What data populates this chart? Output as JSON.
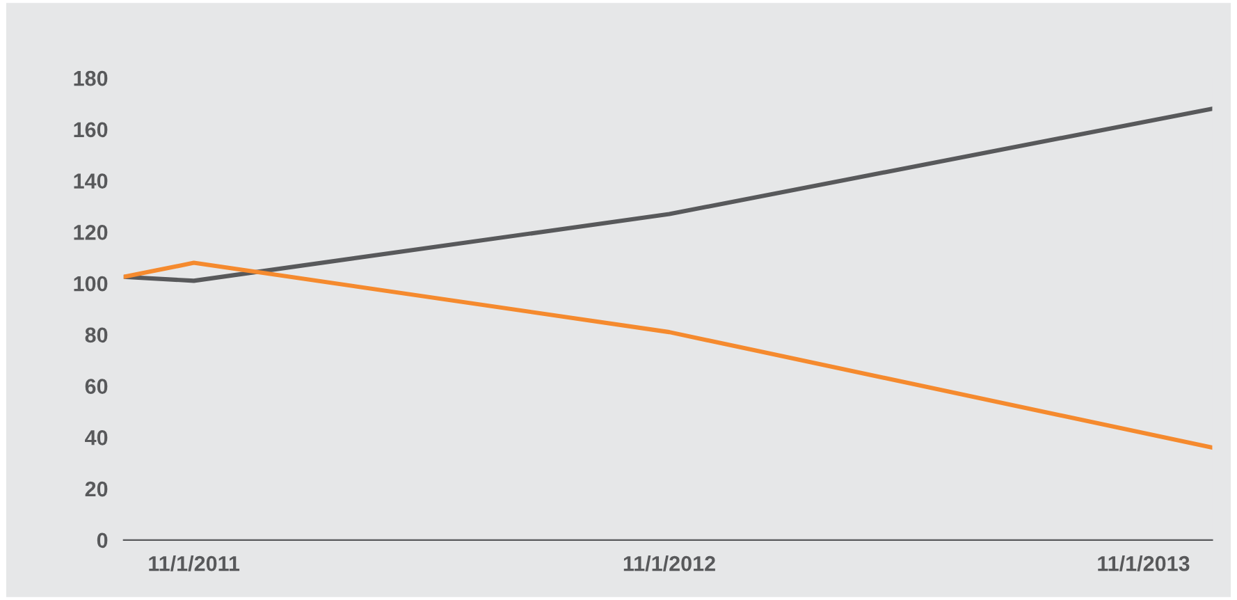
{
  "chart_data": {
    "type": "line",
    "x": [
      "2011-09-08",
      "2011-11-01",
      "2012-11-01",
      "2013-12-24"
    ],
    "series": [
      {
        "color": "#58595b",
        "values": [
          102.5,
          101,
          127,
          168
        ]
      },
      {
        "color": "#f58a2e",
        "values": [
          102.5,
          108,
          81,
          36
        ]
      }
    ],
    "xlim": [
      "2011-09-08",
      "2013-12-24"
    ],
    "xticks": [
      {
        "value": "2011-11-01",
        "label": "11/1/2011"
      },
      {
        "value": "2012-11-01",
        "label": "11/1/2012"
      },
      {
        "value": "2013-11-01",
        "label": "11/1/2013"
      }
    ],
    "ylim": [
      0,
      180
    ],
    "yticks": [
      0,
      20,
      40,
      60,
      80,
      100,
      120,
      140,
      160,
      180
    ],
    "grid": false,
    "legend": false,
    "marker": "none",
    "line_style": "solid"
  }
}
